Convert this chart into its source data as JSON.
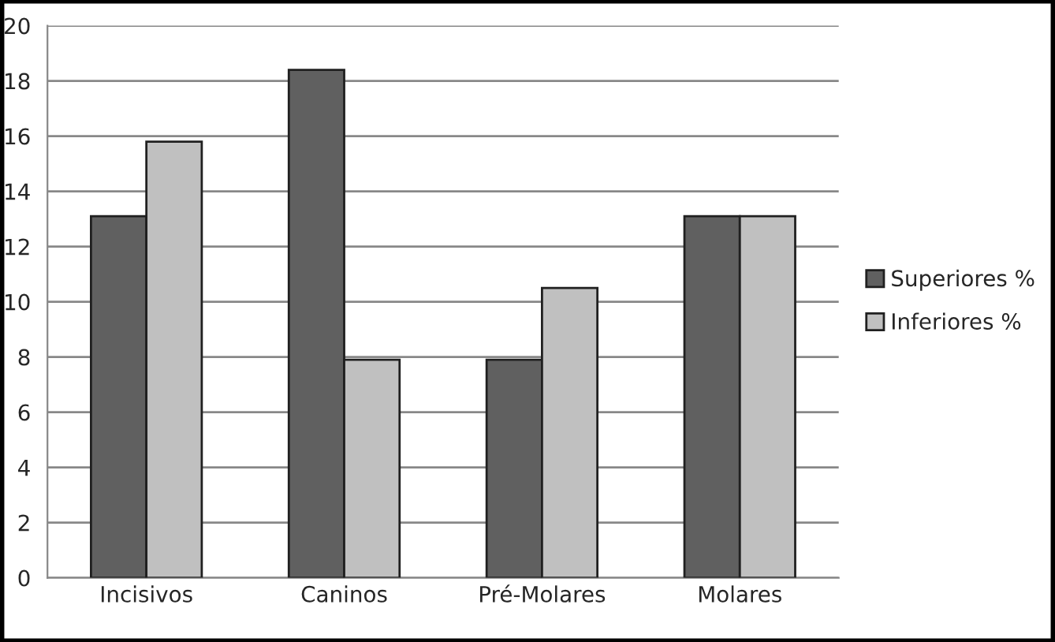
{
  "chart_data": {
    "type": "bar",
    "categories": [
      "Incisivos",
      "Caninos",
      "Pré-Molares",
      "Molares"
    ],
    "series": [
      {
        "name": "Superiores %",
        "color": "#606060",
        "values": [
          13.1,
          18.4,
          7.9,
          13.1
        ]
      },
      {
        "name": "Inferiores %",
        "color": "#c0c0c0",
        "values": [
          15.8,
          7.9,
          10.5,
          13.1
        ]
      }
    ],
    "ylim": [
      0,
      20
    ],
    "yticks": [
      0,
      2,
      4,
      6,
      8,
      10,
      12,
      14,
      16,
      18,
      20
    ],
    "grid": "y",
    "legend": "right"
  }
}
